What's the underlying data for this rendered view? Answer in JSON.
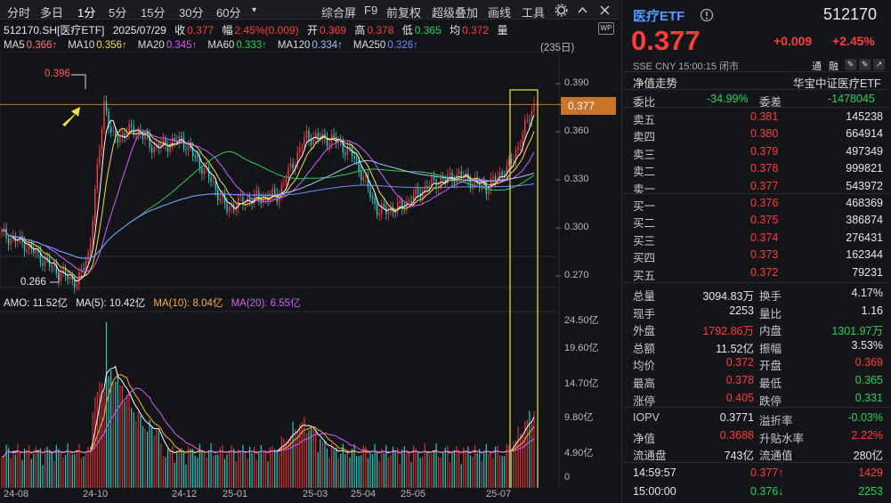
{
  "toolbar": {
    "items": [
      "分时",
      "多日",
      "1分",
      "5分",
      "15分",
      "30分",
      "60分",
      "▾"
    ],
    "right": [
      "综合屏",
      "F9",
      "前复权",
      "超级叠加",
      "画线",
      "工具"
    ]
  },
  "info": {
    "code": "512170.SH[医疗ETF]",
    "date": "2025/07/29",
    "close_label": "收",
    "close": "0.377",
    "amp_label": "幅",
    "amp": "2.45%(0.009)",
    "open_label": "开",
    "open": "0.369",
    "high_label": "高",
    "high": "0.378",
    "low_label": "低",
    "low": "0.365",
    "avg_label": "均",
    "avg": "0.372",
    "vol_label": "量"
  },
  "ma": [
    {
      "t": "MA5",
      "v": "0.366↑",
      "c": "#ff7a7a"
    },
    {
      "t": "MA10",
      "v": "0.356↑",
      "c": "#ffd84a"
    },
    {
      "t": "MA20",
      "v": "0.345↑",
      "c": "#d45cff"
    },
    {
      "t": "MA60",
      "v": "0.333↑",
      "c": "#22d159"
    },
    {
      "t": "MA120",
      "v": "0.334↑",
      "c": "#9ec5ff"
    },
    {
      "t": "MA250",
      "v": "0.326↑",
      "c": "#6c8cff"
    }
  ],
  "days": "(235日)",
  "price_axis": [
    "0.390",
    "0.360",
    "0.330",
    "0.300",
    "0.270"
  ],
  "cur_tag": "0.377",
  "hi_mark": "0.396",
  "lo_mark": "0.266",
  "amo": {
    "label": "AMO: 11.52亿",
    "ma5": "MA(5): 10.42亿",
    "ma10": "MA(10): 8.04亿",
    "ma20": "MA(20): 6.55亿"
  },
  "vol_axis": [
    "24.50亿",
    "19.60亿",
    "14.70亿",
    "9.80亿",
    "4.90亿",
    "0"
  ],
  "xaxis": [
    "24-08",
    "24-10",
    "24-12",
    "25-01",
    "25-03",
    "25-04",
    "25-05",
    "25-07"
  ],
  "quote": {
    "name": "医疗ETF",
    "code": "512170",
    "price": "0.377",
    "change": "+0.009",
    "pct": "+2.45%",
    "meta": "SSE  CNY  15:00:15  闭市",
    "tags": [
      "通",
      "融"
    ]
  },
  "nav": {
    "left": "净值走势",
    "right": "华宝中证医疗ETF"
  },
  "weibi": {
    "l": "委比",
    "lv": "-34.99%",
    "r": "委差",
    "rv": "-1478045"
  },
  "asks": [
    {
      "n": "卖五",
      "p": "0.381",
      "v": "145238"
    },
    {
      "n": "卖四",
      "p": "0.380",
      "v": "664914"
    },
    {
      "n": "卖三",
      "p": "0.379",
      "v": "497349"
    },
    {
      "n": "卖二",
      "p": "0.378",
      "v": "999821"
    },
    {
      "n": "卖一",
      "p": "0.377",
      "v": "543972"
    }
  ],
  "bids": [
    {
      "n": "买一",
      "p": "0.376",
      "v": "468369"
    },
    {
      "n": "买二",
      "p": "0.375",
      "v": "386874"
    },
    {
      "n": "买三",
      "p": "0.374",
      "v": "276431"
    },
    {
      "n": "买四",
      "p": "0.373",
      "v": "162344"
    },
    {
      "n": "买五",
      "p": "0.372",
      "v": "79231"
    }
  ],
  "stats": [
    {
      "a": "总量",
      "av": "3094.83万",
      "ac": "w",
      "b": "换手",
      "bv": "4.17%",
      "bc": "w"
    },
    {
      "a": "现手",
      "av": "2253",
      "ac": "w",
      "b": "量比",
      "bv": "1.16",
      "bc": "w"
    },
    {
      "a": "外盘",
      "av": "1792.86万",
      "ac": "r",
      "b": "内盘",
      "bv": "1301.97万",
      "bc": "g"
    },
    {
      "a": "总额",
      "av": "11.52亿",
      "ac": "w",
      "b": "振幅",
      "bv": "3.53%",
      "bc": "w"
    },
    {
      "a": "均价",
      "av": "0.372",
      "ac": "r",
      "b": "开盘",
      "bv": "0.369",
      "bc": "r"
    },
    {
      "a": "最高",
      "av": "0.378",
      "ac": "r",
      "b": "最低",
      "bv": "0.365",
      "bc": "g"
    },
    {
      "a": "涨停",
      "av": "0.405",
      "ac": "r",
      "b": "跌停",
      "bv": "0.331",
      "bc": "g"
    }
  ],
  "stats2": [
    {
      "a": "IOPV",
      "av": "0.3771",
      "ac": "w",
      "b": "溢折率",
      "bv": "-0.03%",
      "bc": "g"
    },
    {
      "a": "净值",
      "av": "0.3688",
      "ac": "r",
      "b": "升贴水率",
      "bv": "2.22%",
      "bc": "r"
    },
    {
      "a": "流通盘",
      "av": "743亿",
      "ac": "w",
      "b": "流通值",
      "bv": "280亿",
      "bc": "w"
    }
  ],
  "ticks": [
    {
      "t": "14:59:57",
      "p": "0.377↑",
      "pc": "r",
      "v": "1429",
      "vc": "r"
    },
    {
      "t": "15:00:00",
      "p": "0.376↓",
      "pc": "g",
      "v": "2253",
      "vc": "g"
    }
  ],
  "colors": {
    "up": "#ff3b3b",
    "down": "#22d159",
    "bg": "#131418"
  }
}
